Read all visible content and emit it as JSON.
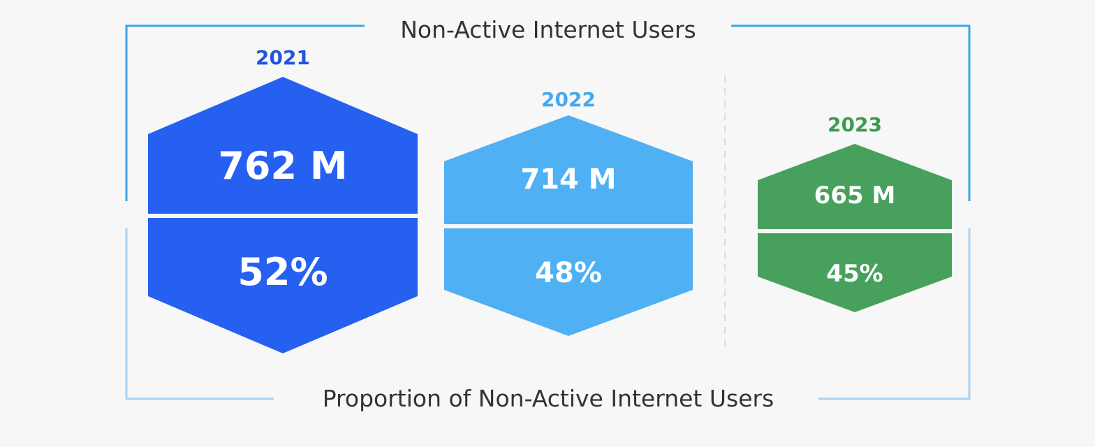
{
  "title_top": "Non-Active Internet Users",
  "title_bottom": "Proportion of Non-Active Internet Users",
  "colors": {
    "frame_top": "#3aa6e6",
    "frame_bottom": "#a9d3f2",
    "divider": "#dddddd",
    "text_dark": "#333333",
    "text_white": "#ffffff"
  },
  "items": [
    {
      "year": "2021",
      "users": "762 M",
      "percent": "52%",
      "color": "#2660f0",
      "year_color": "#2453dc"
    },
    {
      "year": "2022",
      "users": "714 M",
      "percent": "48%",
      "color": "#4fb0f4",
      "year_color": "#45a9ee"
    },
    {
      "year": "2023",
      "users": "665 M",
      "percent": "45%",
      "color": "#47a05b",
      "year_color": "#3d9a52"
    }
  ]
}
